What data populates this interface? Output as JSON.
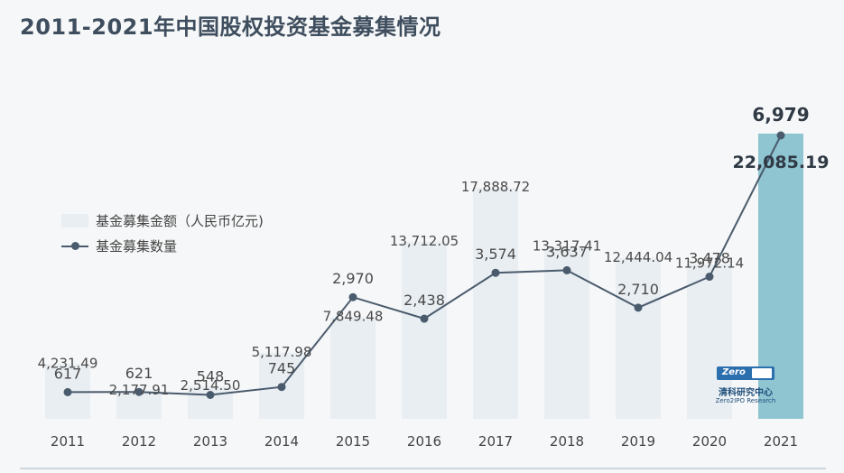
{
  "page": {
    "title": "2011-2021年中国股权投资基金募集情况"
  },
  "watermark": {
    "text_cn": "清科研究中心",
    "text_en": "Zero2IPO Research",
    "badge": "Zero2IPO"
  },
  "colors": {
    "bar": "#e9eef2",
    "bar_highlight": "#8fc4d1",
    "line": "#4a5b6d",
    "title": "#3f4e5e",
    "label": "#4a4a4a",
    "label_highlight": "#2f3a45"
  },
  "chart_data": {
    "type": "bar",
    "title": "2011-2021年中国股权投资基金募集情况",
    "categories": [
      "2011",
      "2012",
      "2013",
      "2014",
      "2015",
      "2016",
      "2017",
      "2018",
      "2019",
      "2020",
      "2021"
    ],
    "series": [
      {
        "name": "基金募集金额（人民币亿元)",
        "type": "bar",
        "values": [
          4231.49,
          2177.91,
          2514.5,
          5117.98,
          7849.48,
          13712.05,
          17888.72,
          13317.41,
          12444.04,
          11972.14,
          22085.19
        ],
        "labels": [
          "4,231.49",
          "2,177.91",
          "2,514.50",
          "5,117.98",
          "7,849.48",
          "13,712.05",
          "17,888.72",
          "13,317.41",
          "12,444.04",
          "11,972.14",
          "22,085.19"
        ]
      },
      {
        "name": "基金募集数量",
        "type": "line",
        "values": [
          617,
          621,
          548,
          745,
          2970,
          2438,
          3574,
          3637,
          2710,
          3478,
          6979
        ],
        "labels": [
          "617",
          "621",
          "548",
          "745",
          "2,970",
          "2,438",
          "3,574",
          "3,637",
          "2,710",
          "3,478",
          "6,979"
        ]
      }
    ],
    "highlight_category": "2021",
    "legend_position": "left",
    "grid": false,
    "ylim_bar": [
      0,
      22085.19
    ],
    "ylim_line": [
      0,
      7000
    ]
  }
}
